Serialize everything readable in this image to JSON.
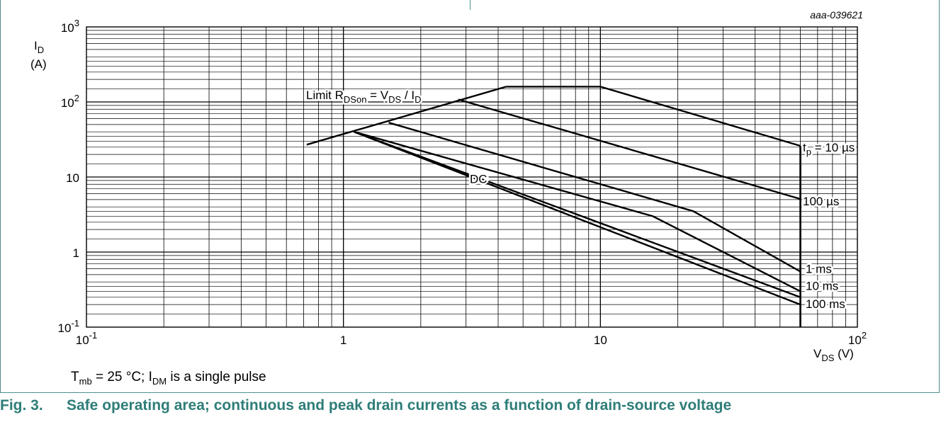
{
  "figure_id": "aaa-039621",
  "note": {
    "T": "T",
    "T_sub": "mb",
    "mid": " = 25 °C; I",
    "I_sub": "DM",
    "end": " is a single pulse"
  },
  "caption": {
    "number": "Fig. 3.",
    "text": "Safe operating area; continuous and peak drain currents as a function of drain-source voltage"
  },
  "colors": {
    "caption": "#2e7d78",
    "frame": "#4f8f8a",
    "curve": "#000000",
    "grid": "#000000"
  },
  "chart_data": {
    "type": "line",
    "x_scale": "log",
    "y_scale": "log",
    "xlim": [
      0.1,
      100
    ],
    "ylim": [
      0.1,
      1000
    ],
    "grid": true,
    "x_axis": {
      "label_main": "V",
      "label_sub": "DS",
      "label_unit": " (V)",
      "ticks": [
        {
          "base": "10",
          "exp": "-1",
          "value": 0.1
        },
        {
          "base": "1",
          "exp": "",
          "value": 1
        },
        {
          "base": "10",
          "exp": "",
          "value": 10
        },
        {
          "base": "10",
          "exp": "2",
          "value": 100
        }
      ]
    },
    "y_axis": {
      "label_main": "I",
      "label_sub": "D",
      "label_unit": "(A)",
      "ticks": [
        {
          "base": "10",
          "exp": "-1",
          "value": 0.1
        },
        {
          "base": "1",
          "exp": "",
          "value": 1
        },
        {
          "base": "10",
          "exp": "",
          "value": 10
        },
        {
          "base": "10",
          "exp": "2",
          "value": 100
        },
        {
          "base": "10",
          "exp": "3",
          "value": 1000
        }
      ]
    },
    "limit_label": {
      "pre": "Limit R",
      "sub1": "DSon",
      "mid": " = V",
      "sub2": "DS",
      "mid2": " / I",
      "sub3": "D"
    },
    "vertical_limit_x": 60,
    "series": [
      {
        "name": "tp = 10 µs",
        "label_main": "t",
        "label_sub": "p",
        "label_rest": " = 10 µs",
        "points": [
          [
            4.3,
            160
          ],
          [
            10,
            160
          ],
          [
            60,
            26
          ]
        ]
      },
      {
        "name": "100 µs",
        "label_main": "100 µs",
        "label_sub": "",
        "label_rest": "",
        "points": [
          [
            2.8,
            108
          ],
          [
            60,
            5.1
          ]
        ]
      },
      {
        "name": "1 ms",
        "label_main": "1 ms",
        "label_sub": "",
        "label_rest": "",
        "points": [
          [
            1.5,
            53
          ],
          [
            23,
            3.5
          ],
          [
            60,
            0.55
          ]
        ]
      },
      {
        "name": "10 ms",
        "label_main": "10 ms",
        "label_sub": "",
        "label_rest": "",
        "points": [
          [
            1.1,
            40
          ],
          [
            16,
            3.0
          ],
          [
            60,
            0.3
          ]
        ]
      },
      {
        "name": "100 ms",
        "label_main": "100 ms",
        "label_sub": "",
        "label_rest": "",
        "points": [
          [
            1.1,
            40
          ],
          [
            60,
            0.25
          ]
        ]
      },
      {
        "name": "DC",
        "label_main": "DC",
        "label_sub": "",
        "label_rest": "",
        "points": [
          [
            1.1,
            40
          ],
          [
            60,
            0.2
          ]
        ]
      }
    ],
    "limit_line": {
      "points": [
        [
          0.72,
          27
        ],
        [
          4.3,
          160
        ]
      ]
    }
  }
}
